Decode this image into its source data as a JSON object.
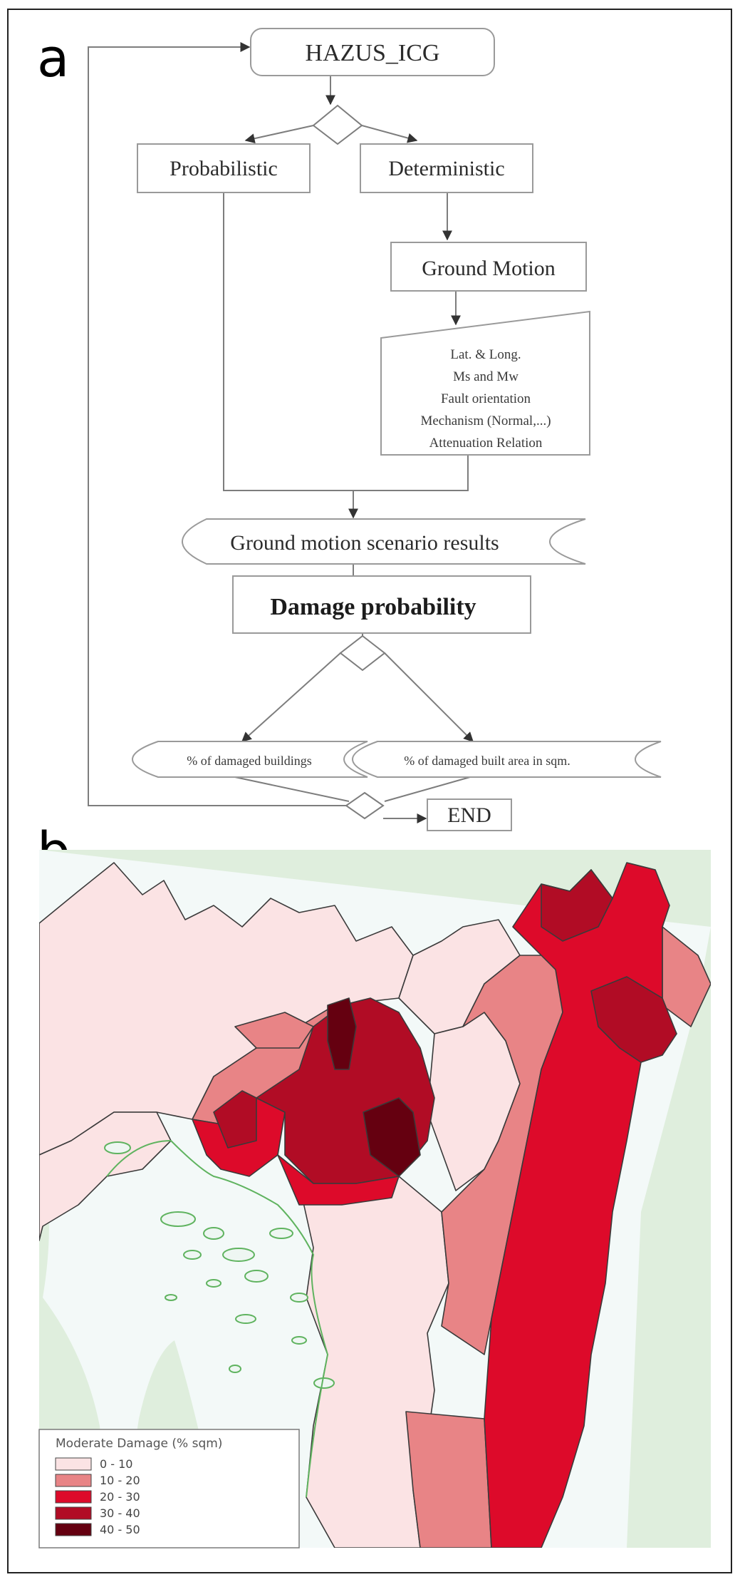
{
  "panels": {
    "a_label": "a",
    "b_label": "b"
  },
  "flowchart": {
    "start": "HAZUS_ICG",
    "probabilistic": "Probabilistic",
    "deterministic": "Deterministic",
    "ground_motion": "Ground Motion",
    "parameters": [
      "Lat. & Long.",
      "Ms and Mw",
      "Fault orientation",
      "Mechanism  (Normal,...)",
      "Attenuation Relation"
    ],
    "scenario_results": "Ground motion scenario results",
    "damage_probability": "Damage probability",
    "damaged_buildings": "% of damaged buildings",
    "damaged_area": "% of damaged built area in sqm.",
    "end": "END"
  },
  "map": {
    "colors": {
      "sea": "#f3f9f8",
      "land": "#dfeedd",
      "coast": "#5fb35f",
      "c0_10": "#fbe3e4",
      "c10_20": "#e88486",
      "c20_30": "#dd0a2a",
      "c30_40": "#b10c25",
      "c40_50": "#650010"
    },
    "legend": {
      "title": "Moderate Damage (% sqm)",
      "classes": [
        {
          "label": "0 - 10",
          "color": "#fbe3e4"
        },
        {
          "label": "10 - 20",
          "color": "#e88486"
        },
        {
          "label": "20 - 30",
          "color": "#dd0a2a"
        },
        {
          "label": "30 - 40",
          "color": "#b10c25"
        },
        {
          "label": "40 - 50",
          "color": "#650010"
        }
      ]
    }
  }
}
